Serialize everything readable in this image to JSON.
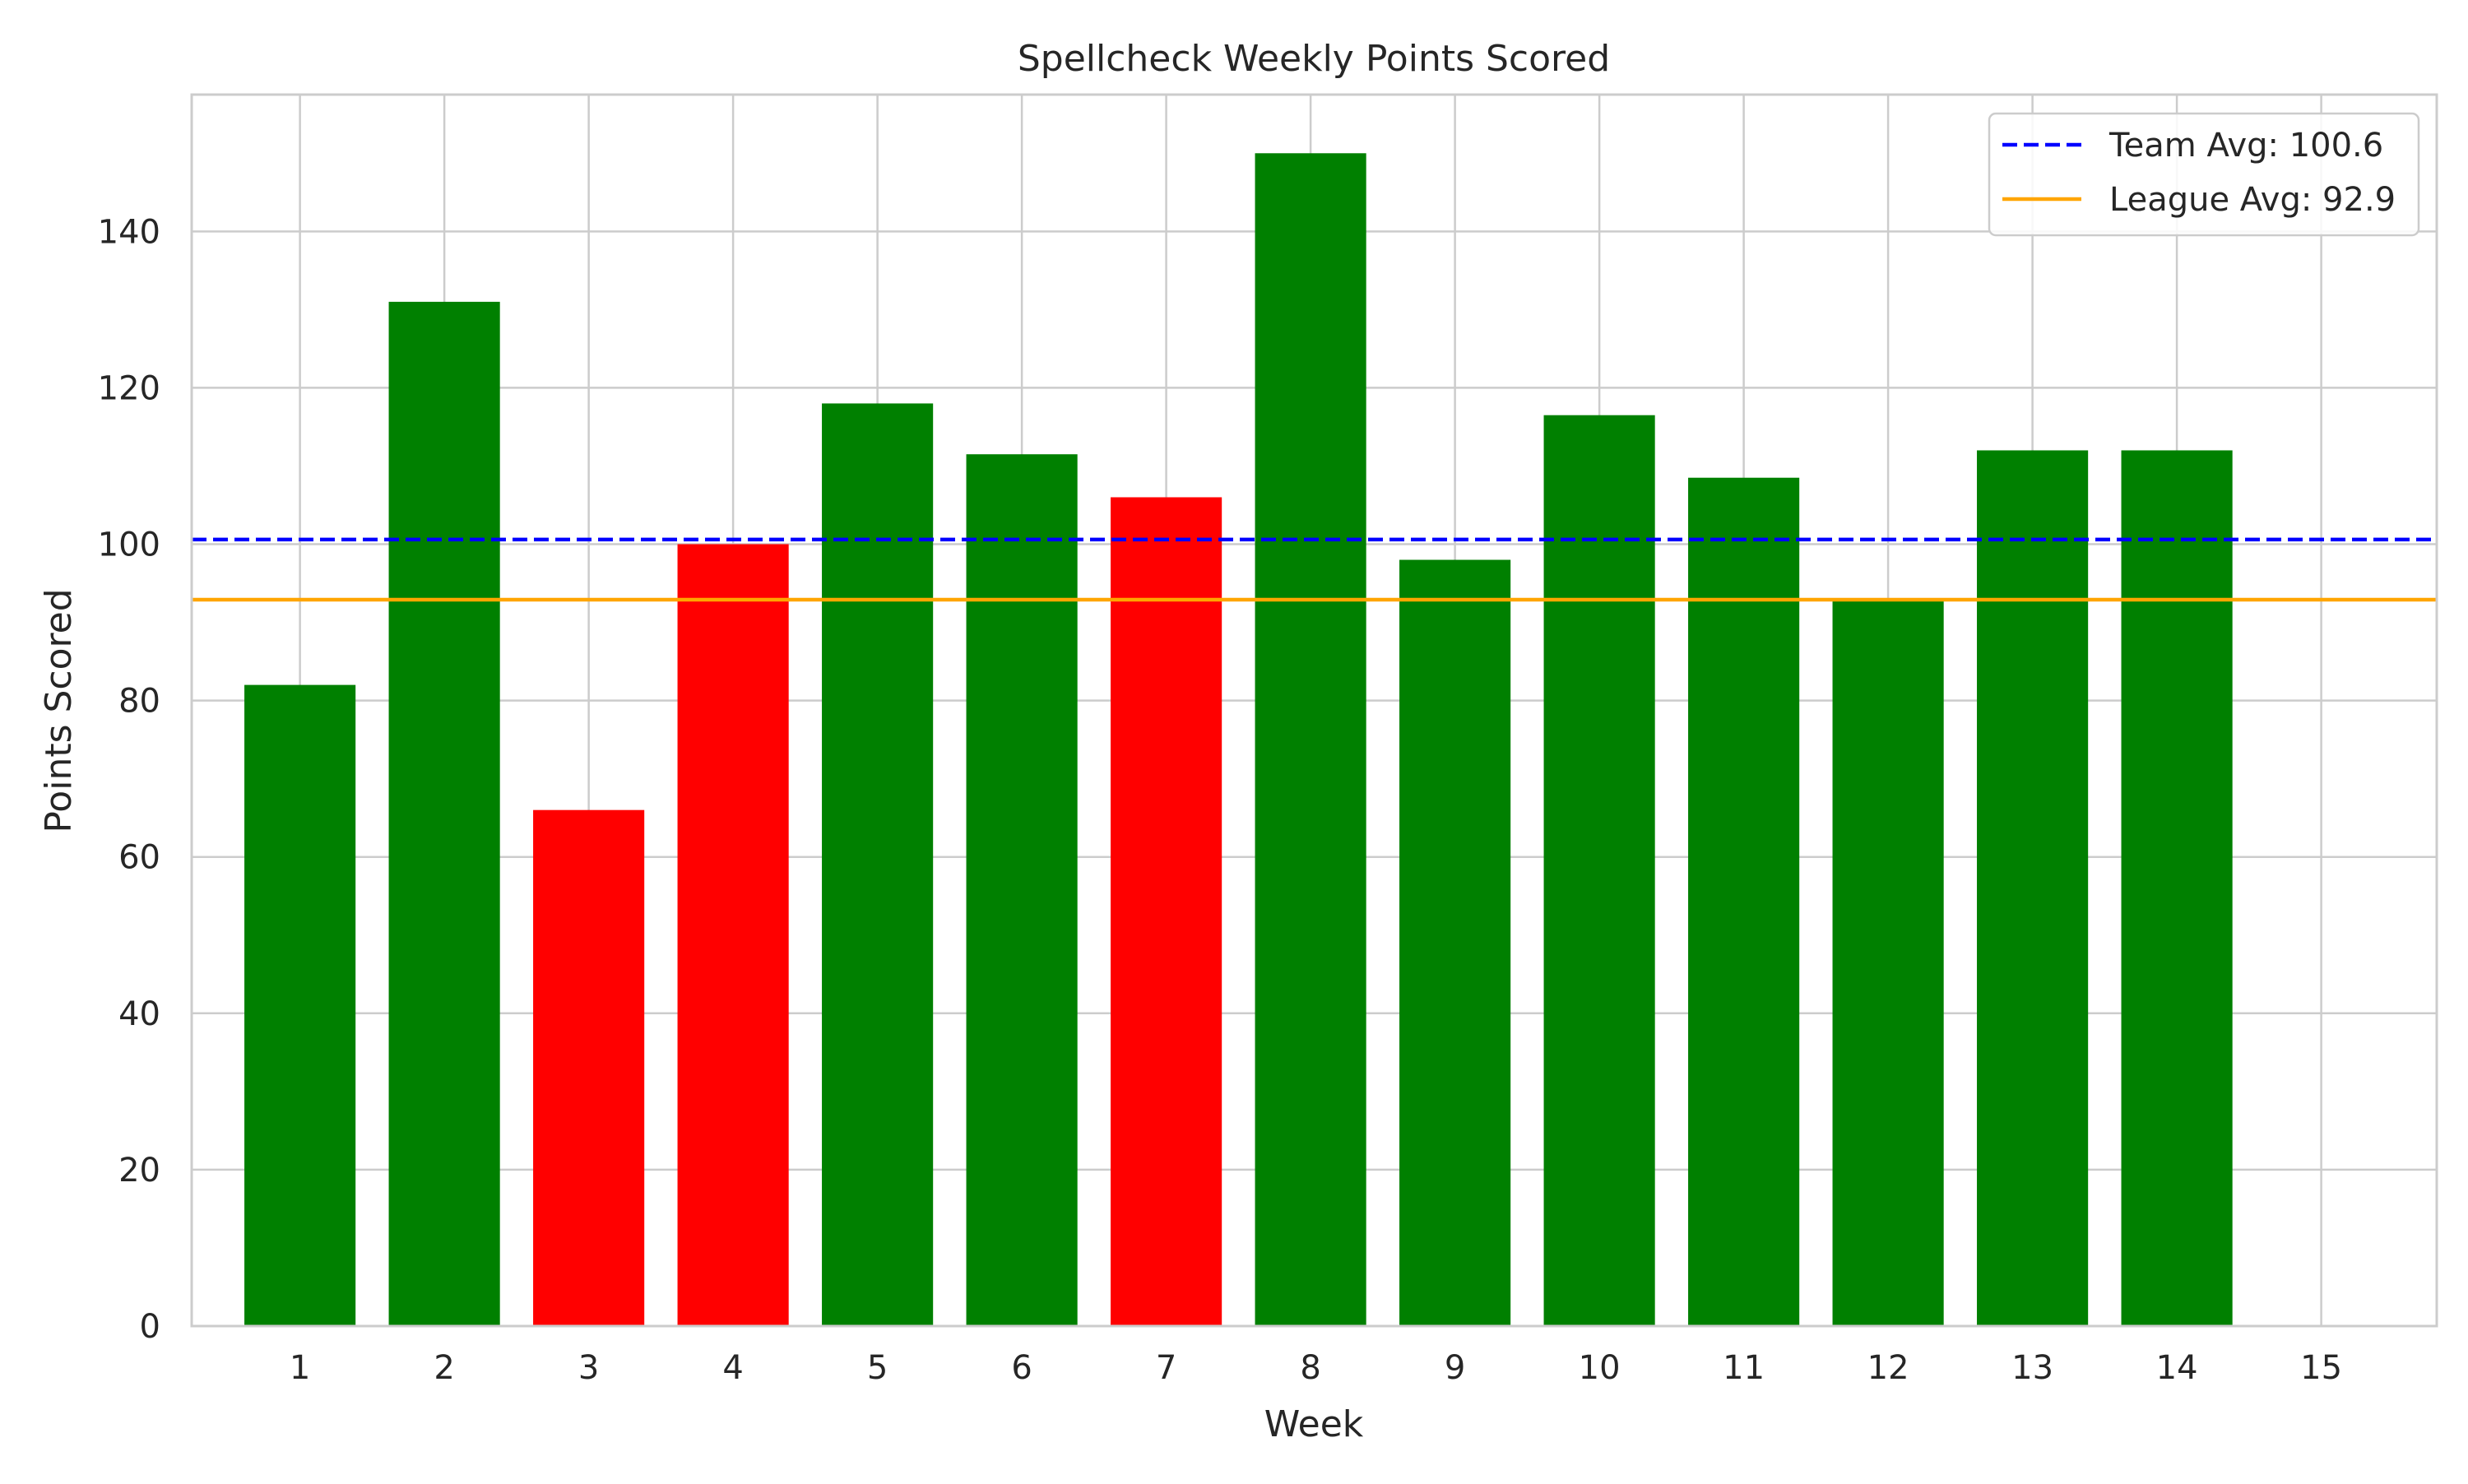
{
  "chart_data": {
    "type": "bar",
    "title": "Spellcheck Weekly Points Scored",
    "xlabel": "Week",
    "ylabel": "Points Scored",
    "categories": [
      "1",
      "2",
      "3",
      "4",
      "5",
      "6",
      "7",
      "8",
      "9",
      "10",
      "11",
      "12",
      "13",
      "14",
      "15"
    ],
    "values": [
      82,
      131,
      66,
      100,
      118,
      111.5,
      106,
      150,
      98,
      116.5,
      108.5,
      93,
      112,
      112,
      null
    ],
    "bar_colors": [
      "#008000",
      "#008000",
      "#ff0000",
      "#ff0000",
      "#008000",
      "#008000",
      "#ff0000",
      "#008000",
      "#008000",
      "#008000",
      "#008000",
      "#008000",
      "#008000",
      "#008000",
      "#008000"
    ],
    "ylim": [
      0,
      157.5
    ],
    "yticks": [
      0,
      20,
      40,
      60,
      80,
      100,
      120,
      140
    ],
    "grid": true,
    "reference_lines": [
      {
        "name": "Team Avg: 100.6",
        "value": 100.6,
        "color": "#0000ff",
        "style": "dashed"
      },
      {
        "name": "League Avg: 92.9",
        "value": 92.9,
        "color": "#ffa500",
        "style": "solid"
      }
    ],
    "legend_position": "top-right"
  }
}
